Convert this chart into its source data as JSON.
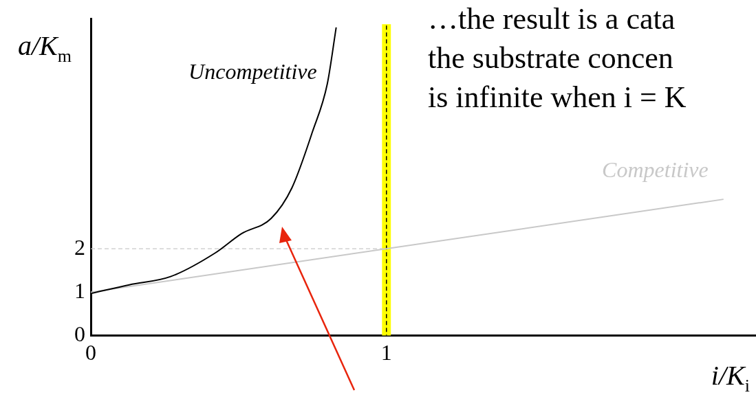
{
  "chart_data": {
    "type": "line",
    "xlabel": "i/K$_{i}$",
    "ylabel": "a/K$_{m}$",
    "xlim": [
      0,
      2.25
    ],
    "ylim": [
      0,
      7.3
    ],
    "xticks": [
      0,
      1
    ],
    "yticks": [
      0,
      1,
      2
    ],
    "grid": false,
    "legend": false,
    "marker": "none",
    "series": [
      {
        "name": "Uncompetitive",
        "color": "#000000",
        "x": [
          0,
          0.13,
          0.27,
          0.42,
          0.51,
          0.61,
          0.68,
          0.75,
          0.8,
          0.83
        ],
        "values": [
          0.97,
          1.17,
          1.36,
          1.9,
          2.35,
          2.7,
          3.4,
          4.7,
          5.8,
          7.1
        ]
      },
      {
        "name": "Competitive",
        "color": "#c8c8c8",
        "x": [
          0,
          2.14
        ],
        "values": [
          1,
          3.14
        ]
      },
      {
        "color": "#c8c8c8",
        "line_style": "dashed",
        "x": [
          0,
          1
        ],
        "values": [
          2,
          2
        ]
      }
    ],
    "ref_lines": [
      {
        "axis": "x",
        "value": 1,
        "color": "#000000",
        "line_style": "dashed"
      }
    ],
    "bands": [
      {
        "axis": "x",
        "from": 0.985,
        "to": 1.015,
        "color": "#ffff00"
      }
    ],
    "annotations": [
      "…the result is a cata",
      "the substrate concen",
      "is infinite when i = K"
    ]
  }
}
